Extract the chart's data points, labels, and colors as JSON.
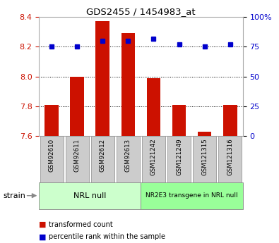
{
  "title": "GDS2455 / 1454983_at",
  "samples": [
    "GSM92610",
    "GSM92611",
    "GSM92612",
    "GSM92613",
    "GSM121242",
    "GSM121249",
    "GSM121315",
    "GSM121316"
  ],
  "transformed_counts": [
    7.81,
    8.0,
    8.37,
    8.29,
    7.99,
    7.81,
    7.63,
    7.81
  ],
  "percentile_ranks": [
    75,
    75,
    80,
    80,
    82,
    77,
    75,
    77
  ],
  "ylim_left": [
    7.6,
    8.4
  ],
  "ylim_right": [
    0,
    100
  ],
  "yticks_left": [
    7.6,
    7.8,
    8.0,
    8.2,
    8.4
  ],
  "yticks_right": [
    0,
    25,
    50,
    75,
    100
  ],
  "groups": [
    {
      "label": "NRL null",
      "start": 0,
      "end": 4,
      "color": "#ccffcc"
    },
    {
      "label": "NR2E3 transgene in NRL null",
      "start": 4,
      "end": 8,
      "color": "#99ff99"
    }
  ],
  "bar_color": "#cc1100",
  "dot_color": "#0000cc",
  "bar_bottom": 7.6,
  "bar_width": 0.55,
  "left_axis_color": "#cc1100",
  "right_axis_color": "#0000cc",
  "label_area_color": "#cccccc",
  "legend_items": [
    "transformed count",
    "percentile rank within the sample"
  ],
  "strain_label": "strain"
}
